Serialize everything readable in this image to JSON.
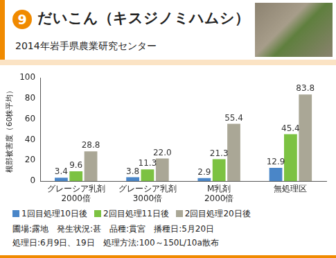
{
  "badge": "9",
  "notes": [
    "圃場:露地　発生状況:甚　品種:貫宮　播種日:5月20日",
    "処理日:6月9日、19日　処理方法:100～150L/10a散布"
  ],
  "chart_data": {
    "type": "bar",
    "title": "だいこん（キスジノミハムシ）",
    "subtitle": "2014年岩手県農業研究センター",
    "y_label": "根部被害度（60株平均）",
    "categories": [
      "グレーシア乳剤\n2000倍",
      "グレーシア乳剤\n3000倍",
      "M乳剤\n2000倍",
      "無処理区"
    ],
    "series": [
      {
        "name": "1回目処理10日後",
        "color": "#4a86c8",
        "values": [
          3.4,
          3.8,
          2.9,
          12.9
        ],
        "value_labels": [
          "3.4",
          "3.8",
          "2.9",
          "12.9"
        ]
      },
      {
        "name": "2回目処理11日後",
        "color": "#7cc242",
        "values": [
          9.6,
          11.3,
          21.3,
          45.4
        ],
        "value_labels": [
          "9.6",
          "11.3",
          "21.3",
          "45.4"
        ]
      },
      {
        "name": "2回目処理20日後",
        "color": "#aaa796",
        "values": [
          28.8,
          22.0,
          55.4,
          83.8
        ],
        "value_labels": [
          "28.8",
          "22.0",
          "55.4",
          "83.8"
        ]
      }
    ],
    "ylim": [
      0,
      100
    ],
    "yticks": [
      0,
      20,
      40,
      60,
      80,
      100
    ],
    "grid": false,
    "legend": "bottom",
    "data_labels": true
  }
}
